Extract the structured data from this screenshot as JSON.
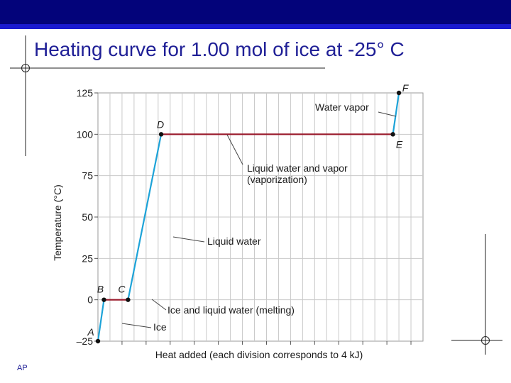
{
  "slide": {
    "title": "Heating curve for 1.00 mol of ice at -25° C",
    "footer": "AP",
    "colors": {
      "bar": "#03037a",
      "stripe": "#1a1ad0",
      "title": "#1f1f96"
    }
  },
  "chart_data": {
    "type": "line",
    "title": "",
    "xlabel": "Heat added (each division corresponds to 4 kJ)",
    "ylabel": "Temperature (°C)",
    "xlim": [
      0,
      108
    ],
    "ylim": [
      -25,
      125
    ],
    "yticks": [
      125,
      100,
      75,
      50,
      25,
      0,
      -25
    ],
    "grid": true,
    "segments": [
      {
        "from": [
          0,
          -25
        ],
        "to": [
          2,
          0
        ],
        "phase": "solid",
        "color": "#1da3d8"
      },
      {
        "from": [
          2,
          0
        ],
        "to": [
          10,
          0
        ],
        "phase": "melting",
        "color": "#9a1a2c"
      },
      {
        "from": [
          10,
          0
        ],
        "to": [
          21,
          100
        ],
        "phase": "liquid",
        "color": "#1da3d8"
      },
      {
        "from": [
          21,
          100
        ],
        "to": [
          98,
          100
        ],
        "phase": "vaporization",
        "color": "#9a1a2c"
      },
      {
        "from": [
          98,
          100
        ],
        "to": [
          100,
          125
        ],
        "phase": "vapor",
        "color": "#1da3d8"
      }
    ],
    "points": [
      {
        "label": "A",
        "x": 0,
        "y": -25
      },
      {
        "label": "B",
        "x": 2,
        "y": 0
      },
      {
        "label": "C",
        "x": 10,
        "y": 0
      },
      {
        "label": "D",
        "x": 21,
        "y": 100
      },
      {
        "label": "E",
        "x": 98,
        "y": 100
      },
      {
        "label": "F",
        "x": 100,
        "y": 125
      }
    ],
    "annotations": [
      {
        "text": [
          "Water vapor"
        ],
        "x": 99,
        "y": 112
      },
      {
        "text": [
          "Liquid water and vapor",
          "(vaporization)"
        ],
        "x": 40,
        "y": 100
      },
      {
        "text": [
          "Liquid water"
        ],
        "x": 14,
        "y": 38
      },
      {
        "text": [
          "Ice and liquid water (melting)"
        ],
        "x": 8,
        "y": 0
      },
      {
        "text": [
          "Ice"
        ],
        "x": 1,
        "y": -13
      }
    ]
  }
}
